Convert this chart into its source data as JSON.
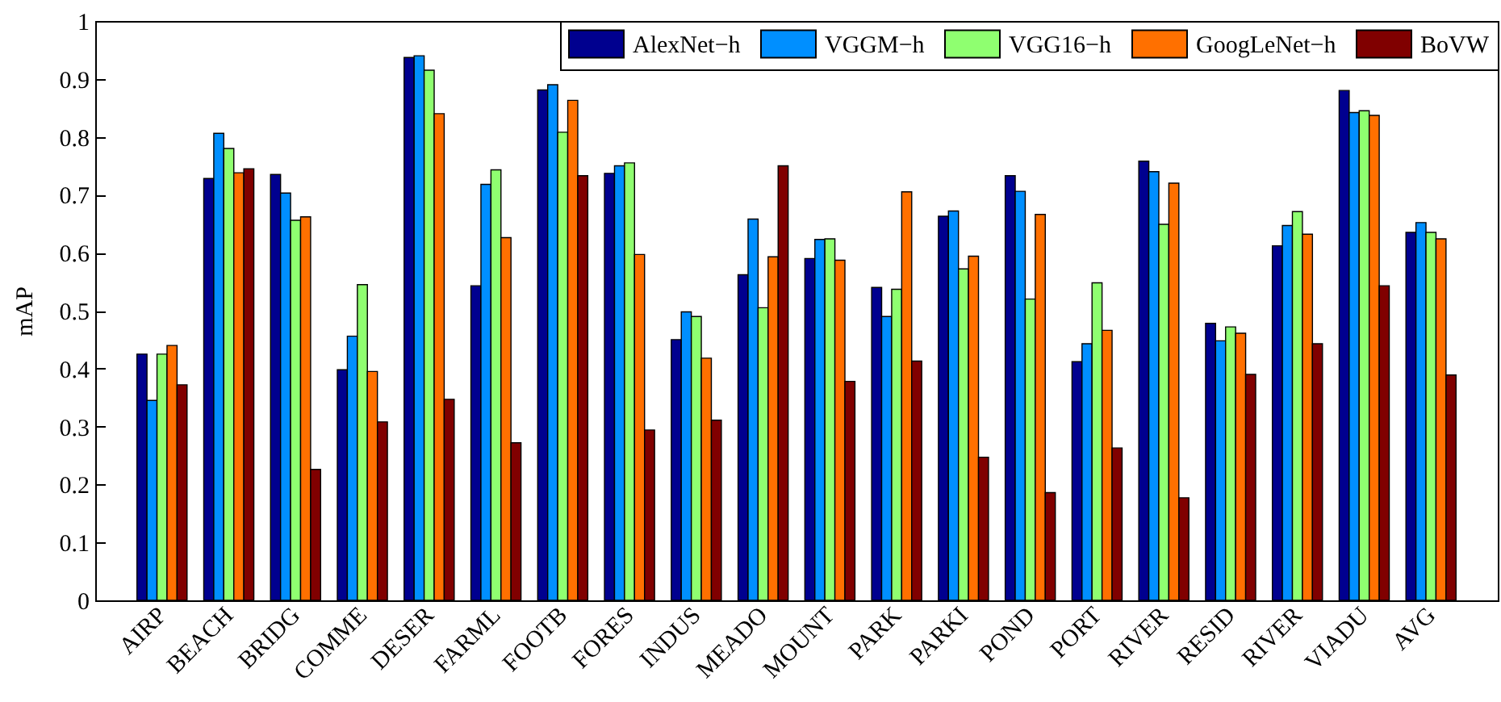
{
  "chart_data": {
    "type": "bar",
    "categories": [
      "AIRP",
      "BEACH",
      "BRIDG",
      "COMME",
      "DESER",
      "FARML",
      "FOOTB",
      "FORES",
      "INDUS",
      "MEADO",
      "MOUNT",
      "PARK",
      "PARKI",
      "POND",
      "PORT",
      "RIVER",
      "RESID",
      "RIVER",
      "VIADU",
      "AVG"
    ],
    "series": [
      {
        "name": "AlexNet−h",
        "color": "#00008f",
        "values": [
          0.425,
          0.728,
          0.735,
          0.398,
          0.937,
          0.543,
          0.881,
          0.737,
          0.45,
          0.562,
          0.59,
          0.54,
          0.663,
          0.733,
          0.412,
          0.758,
          0.478,
          0.612,
          0.88,
          0.635
        ]
      },
      {
        "name": "VGGM−h",
        "color": "#008fff",
        "values": [
          0.345,
          0.806,
          0.703,
          0.456,
          0.94,
          0.718,
          0.89,
          0.75,
          0.498,
          0.658,
          0.623,
          0.49,
          0.672,
          0.706,
          0.443,
          0.74,
          0.448,
          0.647,
          0.842,
          0.652
        ]
      },
      {
        "name": "VGG16−h",
        "color": "#8fff70",
        "values": [
          0.425,
          0.78,
          0.656,
          0.545,
          0.915,
          0.743,
          0.808,
          0.755,
          0.49,
          0.505,
          0.624,
          0.537,
          0.572,
          0.52,
          0.548,
          0.649,
          0.472,
          0.671,
          0.845,
          0.635
        ]
      },
      {
        "name": "GoogLeNet−h",
        "color": "#ff7000",
        "values": [
          0.44,
          0.738,
          0.662,
          0.395,
          0.84,
          0.626,
          0.863,
          0.597,
          0.418,
          0.593,
          0.587,
          0.705,
          0.594,
          0.666,
          0.466,
          0.72,
          0.461,
          0.632,
          0.837,
          0.624
        ]
      },
      {
        "name": "BoVW",
        "color": "#800000",
        "values": [
          0.372,
          0.745,
          0.226,
          0.308,
          0.347,
          0.272,
          0.733,
          0.294,
          0.311,
          0.75,
          0.378,
          0.413,
          0.247,
          0.186,
          0.263,
          0.177,
          0.39,
          0.443,
          0.543,
          0.389
        ]
      }
    ],
    "ylabel": "mAP",
    "ylim": [
      0,
      1
    ],
    "yticks": [
      0,
      0.1,
      0.2,
      0.3,
      0.4,
      0.5,
      0.6,
      0.7,
      0.8,
      0.9,
      1
    ],
    "legend": "top right",
    "grid": false
  }
}
